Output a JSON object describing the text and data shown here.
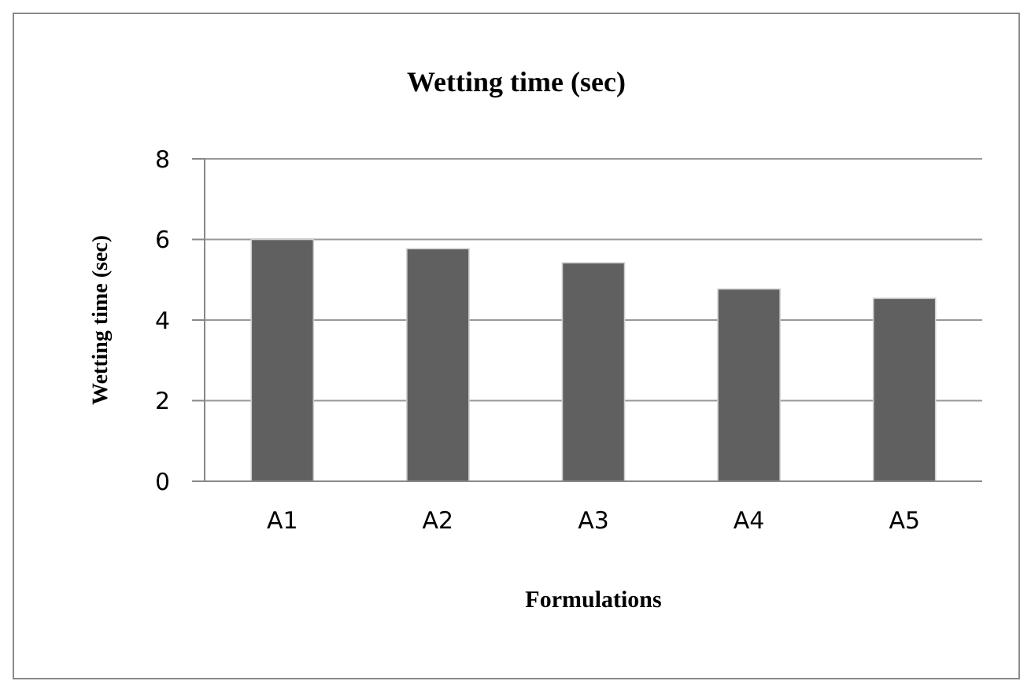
{
  "chart_data": {
    "type": "bar",
    "title": "Wetting time (sec)",
    "xlabel": "Formulations",
    "ylabel": "Wetting time (sec)",
    "categories": [
      "A1",
      "A2",
      "A3",
      "A4",
      "A5"
    ],
    "values": [
      6.0,
      5.77,
      5.42,
      4.77,
      4.54
    ],
    "color": "#606060",
    "ylim": [
      0,
      8
    ],
    "yticks": [
      0,
      2,
      4,
      6,
      8
    ],
    "grid": "y"
  }
}
